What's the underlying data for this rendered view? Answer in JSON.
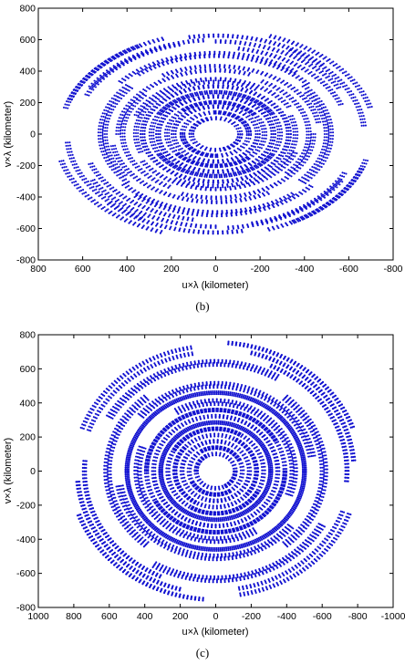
{
  "chart_data": [
    {
      "type": "scatter",
      "caption": "(b)",
      "xlabel": "u×λ (kilometer)",
      "ylabel": "v×λ (kilometer)",
      "xlim": [
        800,
        -800
      ],
      "ylim": [
        -800,
        800
      ],
      "x_reversed": true,
      "xticks": [
        800,
        600,
        400,
        200,
        0,
        -200,
        -400,
        -600,
        -800
      ],
      "yticks": [
        -800,
        -600,
        -400,
        -200,
        0,
        200,
        400,
        600,
        800
      ],
      "xtick_labels": [
        "800",
        "600",
        "400",
        "200",
        "0",
        "-200",
        "-400",
        "-600",
        "-800"
      ],
      "ytick_labels": [
        "-800",
        "-600",
        "-400",
        "-200",
        "0",
        "200",
        "400",
        "600",
        "800"
      ],
      "marker_color": "#1010d0",
      "series": [
        {
          "tracks": [
            {
              "radius": 680,
              "start_deg": 80,
              "end_deg": 135
            },
            {
              "radius": 640,
              "start_deg": 90,
              "end_deg": 150
            },
            {
              "radius": 600,
              "start_deg": 100,
              "end_deg": 160
            },
            {
              "radius": 700,
              "start_deg": 200,
              "end_deg": 250
            },
            {
              "radius": 650,
              "start_deg": 210,
              "end_deg": 265
            },
            {
              "radius": 720,
              "start_deg": -70,
              "end_deg": -15
            },
            {
              "radius": 670,
              "start_deg": -60,
              "end_deg": -5
            },
            {
              "radius": 700,
              "start_deg": 15,
              "end_deg": 60
            },
            {
              "radius": 640,
              "start_deg": 25,
              "end_deg": 75
            },
            {
              "radius": 560,
              "start_deg": 40,
              "end_deg": 130
            },
            {
              "radius": 520,
              "start_deg": 140,
              "end_deg": 220
            },
            {
              "radius": 540,
              "start_deg": 230,
              "end_deg": 320
            },
            {
              "radius": 500,
              "start_deg": -35,
              "end_deg": 40
            },
            {
              "radius": 470,
              "start_deg": 60,
              "end_deg": 170
            },
            {
              "radius": 440,
              "start_deg": 180,
              "end_deg": 290
            },
            {
              "radius": 420,
              "start_deg": 300,
              "end_deg": 400
            },
            {
              "radius": 380,
              "start_deg": 20,
              "end_deg": 150
            },
            {
              "radius": 360,
              "start_deg": 160,
              "end_deg": 300
            },
            {
              "radius": 330,
              "start_deg": 0,
              "end_deg": 360
            },
            {
              "radius": 290,
              "start_deg": 30,
              "end_deg": 330
            },
            {
              "radius": 260,
              "start_deg": 0,
              "end_deg": 360
            },
            {
              "radius": 220,
              "start_deg": 50,
              "end_deg": 320
            },
            {
              "radius": 190,
              "start_deg": 0,
              "end_deg": 300
            },
            {
              "radius": 150,
              "start_deg": 90,
              "end_deg": 360
            },
            {
              "radius": 110,
              "start_deg": 0,
              "end_deg": 250
            }
          ]
        }
      ]
    },
    {
      "type": "scatter",
      "caption": "(c)",
      "xlabel": "u×λ (kilometer)",
      "ylabel": "v×λ (kilometer)",
      "xlim": [
        1000,
        -1000
      ],
      "ylim": [
        -800,
        800
      ],
      "x_reversed": true,
      "xticks": [
        1000,
        800,
        600,
        400,
        200,
        0,
        -200,
        -400,
        -600,
        -800,
        -1000
      ],
      "yticks": [
        -800,
        -600,
        -400,
        -200,
        0,
        200,
        400,
        600,
        800
      ],
      "xtick_labels": [
        "1000",
        "800",
        "600",
        "400",
        "200",
        "0",
        "-200",
        "-400",
        "-600",
        "-800",
        "-1000"
      ],
      "ytick_labels": [
        "-800",
        "-600",
        "-400",
        "-200",
        "0",
        "200",
        "400",
        "600",
        "800"
      ],
      "marker_color": "#1010d0",
      "series": [
        {
          "tracks": [
            {
              "radius": 820,
              "start_deg": 95,
              "end_deg": 160
            },
            {
              "radius": 780,
              "start_deg": 105,
              "end_deg": 175
            },
            {
              "radius": 740,
              "start_deg": 115,
              "end_deg": 185
            },
            {
              "radius": 820,
              "start_deg": 275,
              "end_deg": 340
            },
            {
              "radius": 780,
              "start_deg": 285,
              "end_deg": 355
            },
            {
              "radius": 740,
              "start_deg": 295,
              "end_deg": 365
            },
            {
              "radius": 800,
              "start_deg": 20,
              "end_deg": 80
            },
            {
              "radius": 760,
              "start_deg": 200,
              "end_deg": 260
            },
            {
              "radius": 700,
              "start_deg": 30,
              "end_deg": 120
            },
            {
              "radius": 680,
              "start_deg": 210,
              "end_deg": 300
            },
            {
              "radius": 620,
              "start_deg": 130,
              "end_deg": 230
            },
            {
              "radius": 600,
              "start_deg": 310,
              "end_deg": 410
            },
            {
              "radius": 560,
              "start_deg": 40,
              "end_deg": 170
            },
            {
              "radius": 540,
              "start_deg": 220,
              "end_deg": 350
            },
            {
              "radius": 500,
              "start_deg": 0,
              "end_deg": 360
            },
            {
              "radius": 450,
              "start_deg": 60,
              "end_deg": 200
            },
            {
              "radius": 430,
              "start_deg": 240,
              "end_deg": 380
            },
            {
              "radius": 390,
              "start_deg": 0,
              "end_deg": 330
            },
            {
              "radius": 350,
              "start_deg": 90,
              "end_deg": 360
            },
            {
              "radius": 310,
              "start_deg": 0,
              "end_deg": 360
            },
            {
              "radius": 270,
              "start_deg": 30,
              "end_deg": 300
            },
            {
              "radius": 230,
              "start_deg": 120,
              "end_deg": 400
            },
            {
              "radius": 190,
              "start_deg": 0,
              "end_deg": 280
            },
            {
              "radius": 150,
              "start_deg": 60,
              "end_deg": 330
            },
            {
              "radius": 110,
              "start_deg": 0,
              "end_deg": 240
            }
          ]
        }
      ]
    }
  ]
}
